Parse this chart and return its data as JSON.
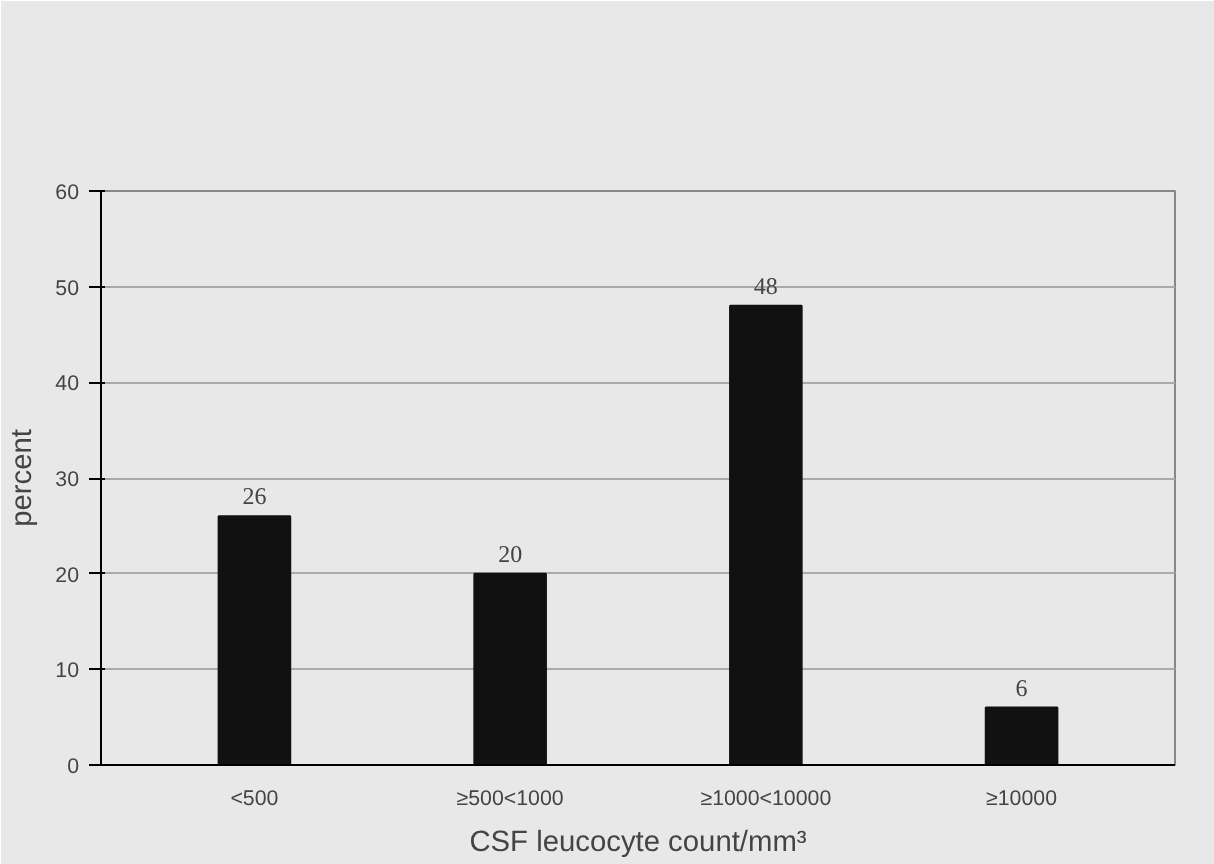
{
  "chart_data": {
    "type": "bar",
    "ylabel": "percent",
    "xlabel": "CSF leucocyte count/mm³",
    "categories": [
      "<500",
      "≥500<1000",
      "≥1000<10000",
      "≥10000"
    ],
    "values": [
      26,
      20,
      48,
      6
    ],
    "color": "#111111",
    "ylim": [
      0,
      60
    ],
    "yticks": [
      0,
      10,
      20,
      30,
      40,
      50,
      60
    ],
    "grid": "y",
    "data_labels": true
  }
}
